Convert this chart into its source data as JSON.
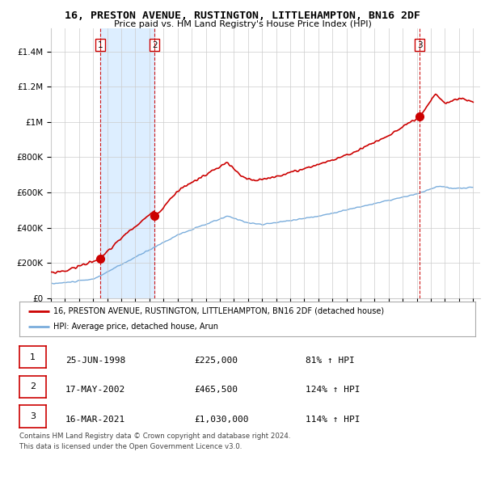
{
  "title": "16, PRESTON AVENUE, RUSTINGTON, LITTLEHAMPTON, BN16 2DF",
  "subtitle": "Price paid vs. HM Land Registry's House Price Index (HPI)",
  "ylim": [
    0,
    1500000
  ],
  "yticks": [
    0,
    200000,
    400000,
    600000,
    800000,
    1000000,
    1200000,
    1400000
  ],
  "ytick_labels": [
    "£0",
    "£200K",
    "£400K",
    "£600K",
    "£800K",
    "£1M",
    "£1.2M",
    "£1.4M"
  ],
  "sale_year_nums": [
    1998.5,
    2002.37,
    2021.21
  ],
  "sale_prices": [
    225000,
    465500,
    1030000
  ],
  "sale_labels": [
    "1",
    "2",
    "3"
  ],
  "legend_house": "16, PRESTON AVENUE, RUSTINGTON, LITTLEHAMPTON, BN16 2DF (detached house)",
  "legend_hpi": "HPI: Average price, detached house, Arun",
  "table_rows": [
    [
      "1",
      "25-JUN-1998",
      "£225,000",
      "81% ↑ HPI"
    ],
    [
      "2",
      "17-MAY-2002",
      "£465,500",
      "124% ↑ HPI"
    ],
    [
      "3",
      "16-MAR-2021",
      "£1,030,000",
      "114% ↑ HPI"
    ]
  ],
  "footer1": "Contains HM Land Registry data © Crown copyright and database right 2024.",
  "footer2": "This data is licensed under the Open Government Licence v3.0.",
  "house_color": "#cc0000",
  "hpi_color": "#7aaddc",
  "vline_color": "#cc0000",
  "shade_color": "#ddeeff",
  "background_color": "#ffffff",
  "grid_color": "#cccccc"
}
